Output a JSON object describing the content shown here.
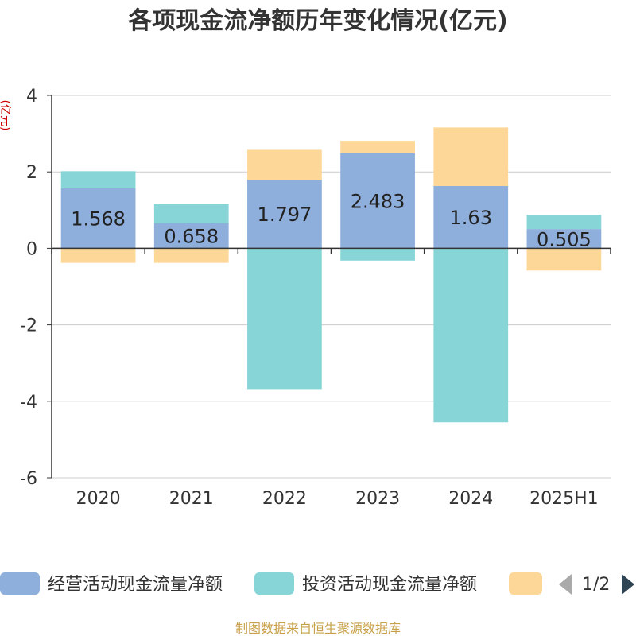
{
  "title": "各项现金流净额历年变化情况(亿元)",
  "y_unit": "(亿元)",
  "source": "制图数据来自恒生聚源数据库",
  "legend": {
    "page": "1/2",
    "items": [
      {
        "label": "经营活动现金流量净额",
        "color": "#8eaedb"
      },
      {
        "label": "投资活动现金流量净额",
        "color": "#88d5d8"
      },
      {
        "label": "",
        "color": "#fdd797"
      }
    ]
  },
  "chart_data": {
    "type": "bar",
    "stacked": true,
    "categories": [
      "2020",
      "2021",
      "2022",
      "2023",
      "2024",
      "2025H1"
    ],
    "series": [
      {
        "name": "经营活动现金流量净额",
        "color": "#8eaedb",
        "values": [
          1.568,
          0.658,
          1.797,
          2.483,
          1.63,
          0.505
        ],
        "labels": [
          "1.568",
          "0.658",
          "1.797",
          "2.483",
          "1.63",
          "0.505"
        ]
      },
      {
        "name": "投资活动现金流量净额",
        "color": "#88d5d8",
        "values": [
          0.45,
          0.5,
          -3.68,
          -0.32,
          -4.55,
          0.37
        ]
      },
      {
        "color": "#fdd797",
        "values": [
          -0.38,
          -0.38,
          0.78,
          0.33,
          1.53,
          -0.58
        ]
      }
    ],
    "ylim": [
      -6,
      4
    ],
    "yticks": [
      -6,
      -4,
      -2,
      0,
      2,
      4
    ],
    "grid": true,
    "legend_position": "bottom"
  }
}
